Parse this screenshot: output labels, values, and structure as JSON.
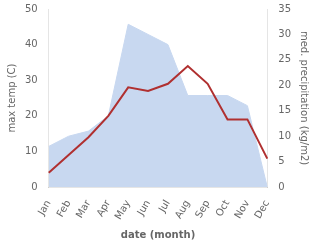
{
  "chart_data": {
    "type": "line",
    "xlabel": "date (month)",
    "ylabel": "max temp (C)",
    "y2label": "med. precipitation (kg/m2)",
    "categories": [
      "Jan",
      "Feb",
      "Mar",
      "Apr",
      "May",
      "Jun",
      "Jul",
      "Aug",
      "Sep",
      "Oct",
      "Nov",
      "Dec"
    ],
    "series": [
      {
        "type": "area",
        "axis": "y2",
        "color": "#c8d8f0",
        "marker": "none",
        "line_style": "solid",
        "values": [
          8,
          10,
          11,
          14,
          32,
          30,
          28,
          18,
          18,
          18,
          16,
          0
        ]
      },
      {
        "type": "line",
        "color": "#b03030",
        "marker": "none",
        "line_style": "solid",
        "values": [
          4,
          9,
          14,
          20,
          28,
          27,
          29,
          34,
          29,
          19,
          19,
          8
        ]
      }
    ],
    "ylim": [
      0,
      50
    ],
    "yticks": [
      0,
      10,
      20,
      30,
      40,
      50
    ],
    "y2lim": [
      0,
      35
    ],
    "y2ticks": [
      0,
      5,
      10,
      15,
      20,
      25,
      30,
      35
    ],
    "grid": false
  }
}
